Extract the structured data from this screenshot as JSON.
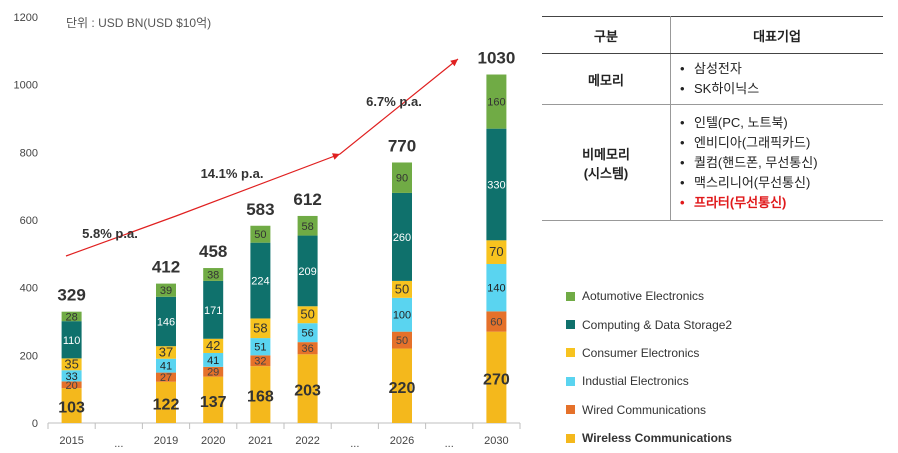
{
  "unit_label": "단위 : USD BN(USD $10억)",
  "chart_data": {
    "type": "bar",
    "stacked": true,
    "ylim": [
      0,
      1200
    ],
    "yticks": [
      0,
      200,
      400,
      600,
      800,
      1000,
      1200
    ],
    "categories": [
      "2015",
      "...",
      "2019",
      "2020",
      "2021",
      "2022",
      "...",
      "2026",
      "...",
      "2030"
    ],
    "series": [
      {
        "name": "Wireless Communications",
        "color": "#f4b81c",
        "values": [
          103,
          null,
          122,
          137,
          168,
          203,
          null,
          220,
          null,
          270
        ]
      },
      {
        "name": "Wired Communications",
        "color": "#e5712a",
        "values": [
          20,
          null,
          27,
          29,
          32,
          36,
          null,
          50,
          null,
          60
        ]
      },
      {
        "name": "Industial Electronics",
        "color": "#5ad4f0",
        "values": [
          33,
          null,
          41,
          41,
          51,
          56,
          null,
          100,
          null,
          140
        ]
      },
      {
        "name": "Consumer Electronics",
        "color": "#f7c31f",
        "values": [
          35,
          null,
          37,
          42,
          58,
          50,
          null,
          50,
          null,
          70
        ]
      },
      {
        "name": "Computing & Data Storage2",
        "color": "#0f716c",
        "values": [
          110,
          null,
          146,
          171,
          224,
          209,
          null,
          260,
          null,
          330
        ]
      },
      {
        "name": "Aotumotive Electronics",
        "color": "#70ab45",
        "values": [
          28,
          null,
          39,
          38,
          50,
          58,
          null,
          90,
          null,
          160
        ]
      }
    ],
    "totals": [
      329,
      null,
      412,
      458,
      583,
      612,
      null,
      770,
      null,
      1030
    ],
    "growth_annotations": [
      "5.8% p.a.",
      "14.1% p.a.",
      "6.7% p.a."
    ]
  },
  "legend": [
    {
      "label": "Aotumotive Electronics",
      "color": "#70ab45"
    },
    {
      "label": "Computing & Data Storage2",
      "color": "#0f716c"
    },
    {
      "label": "Consumer Electronics",
      "color": "#f7c31f"
    },
    {
      "label": "Industial Electronics",
      "color": "#5ad4f0"
    },
    {
      "label": "Wired Communications",
      "color": "#e5712a"
    },
    {
      "label": "Wireless Communications",
      "color": "#f4b81c"
    }
  ],
  "table": {
    "header": {
      "category": "구분",
      "companies": "대표기업"
    },
    "rows": [
      {
        "category": "메모리",
        "companies": [
          "삼성전자",
          "SK하이닉스"
        ]
      },
      {
        "category": "비메모리\n(시스템)",
        "companies": [
          "인텔(PC, 노트북)",
          "엔비디아(그래픽카드)",
          "퀄컴(핸드폰, 무선통신)",
          "맥스리니어(무선통신)",
          "프라터(무선통신)"
        ]
      }
    ]
  }
}
